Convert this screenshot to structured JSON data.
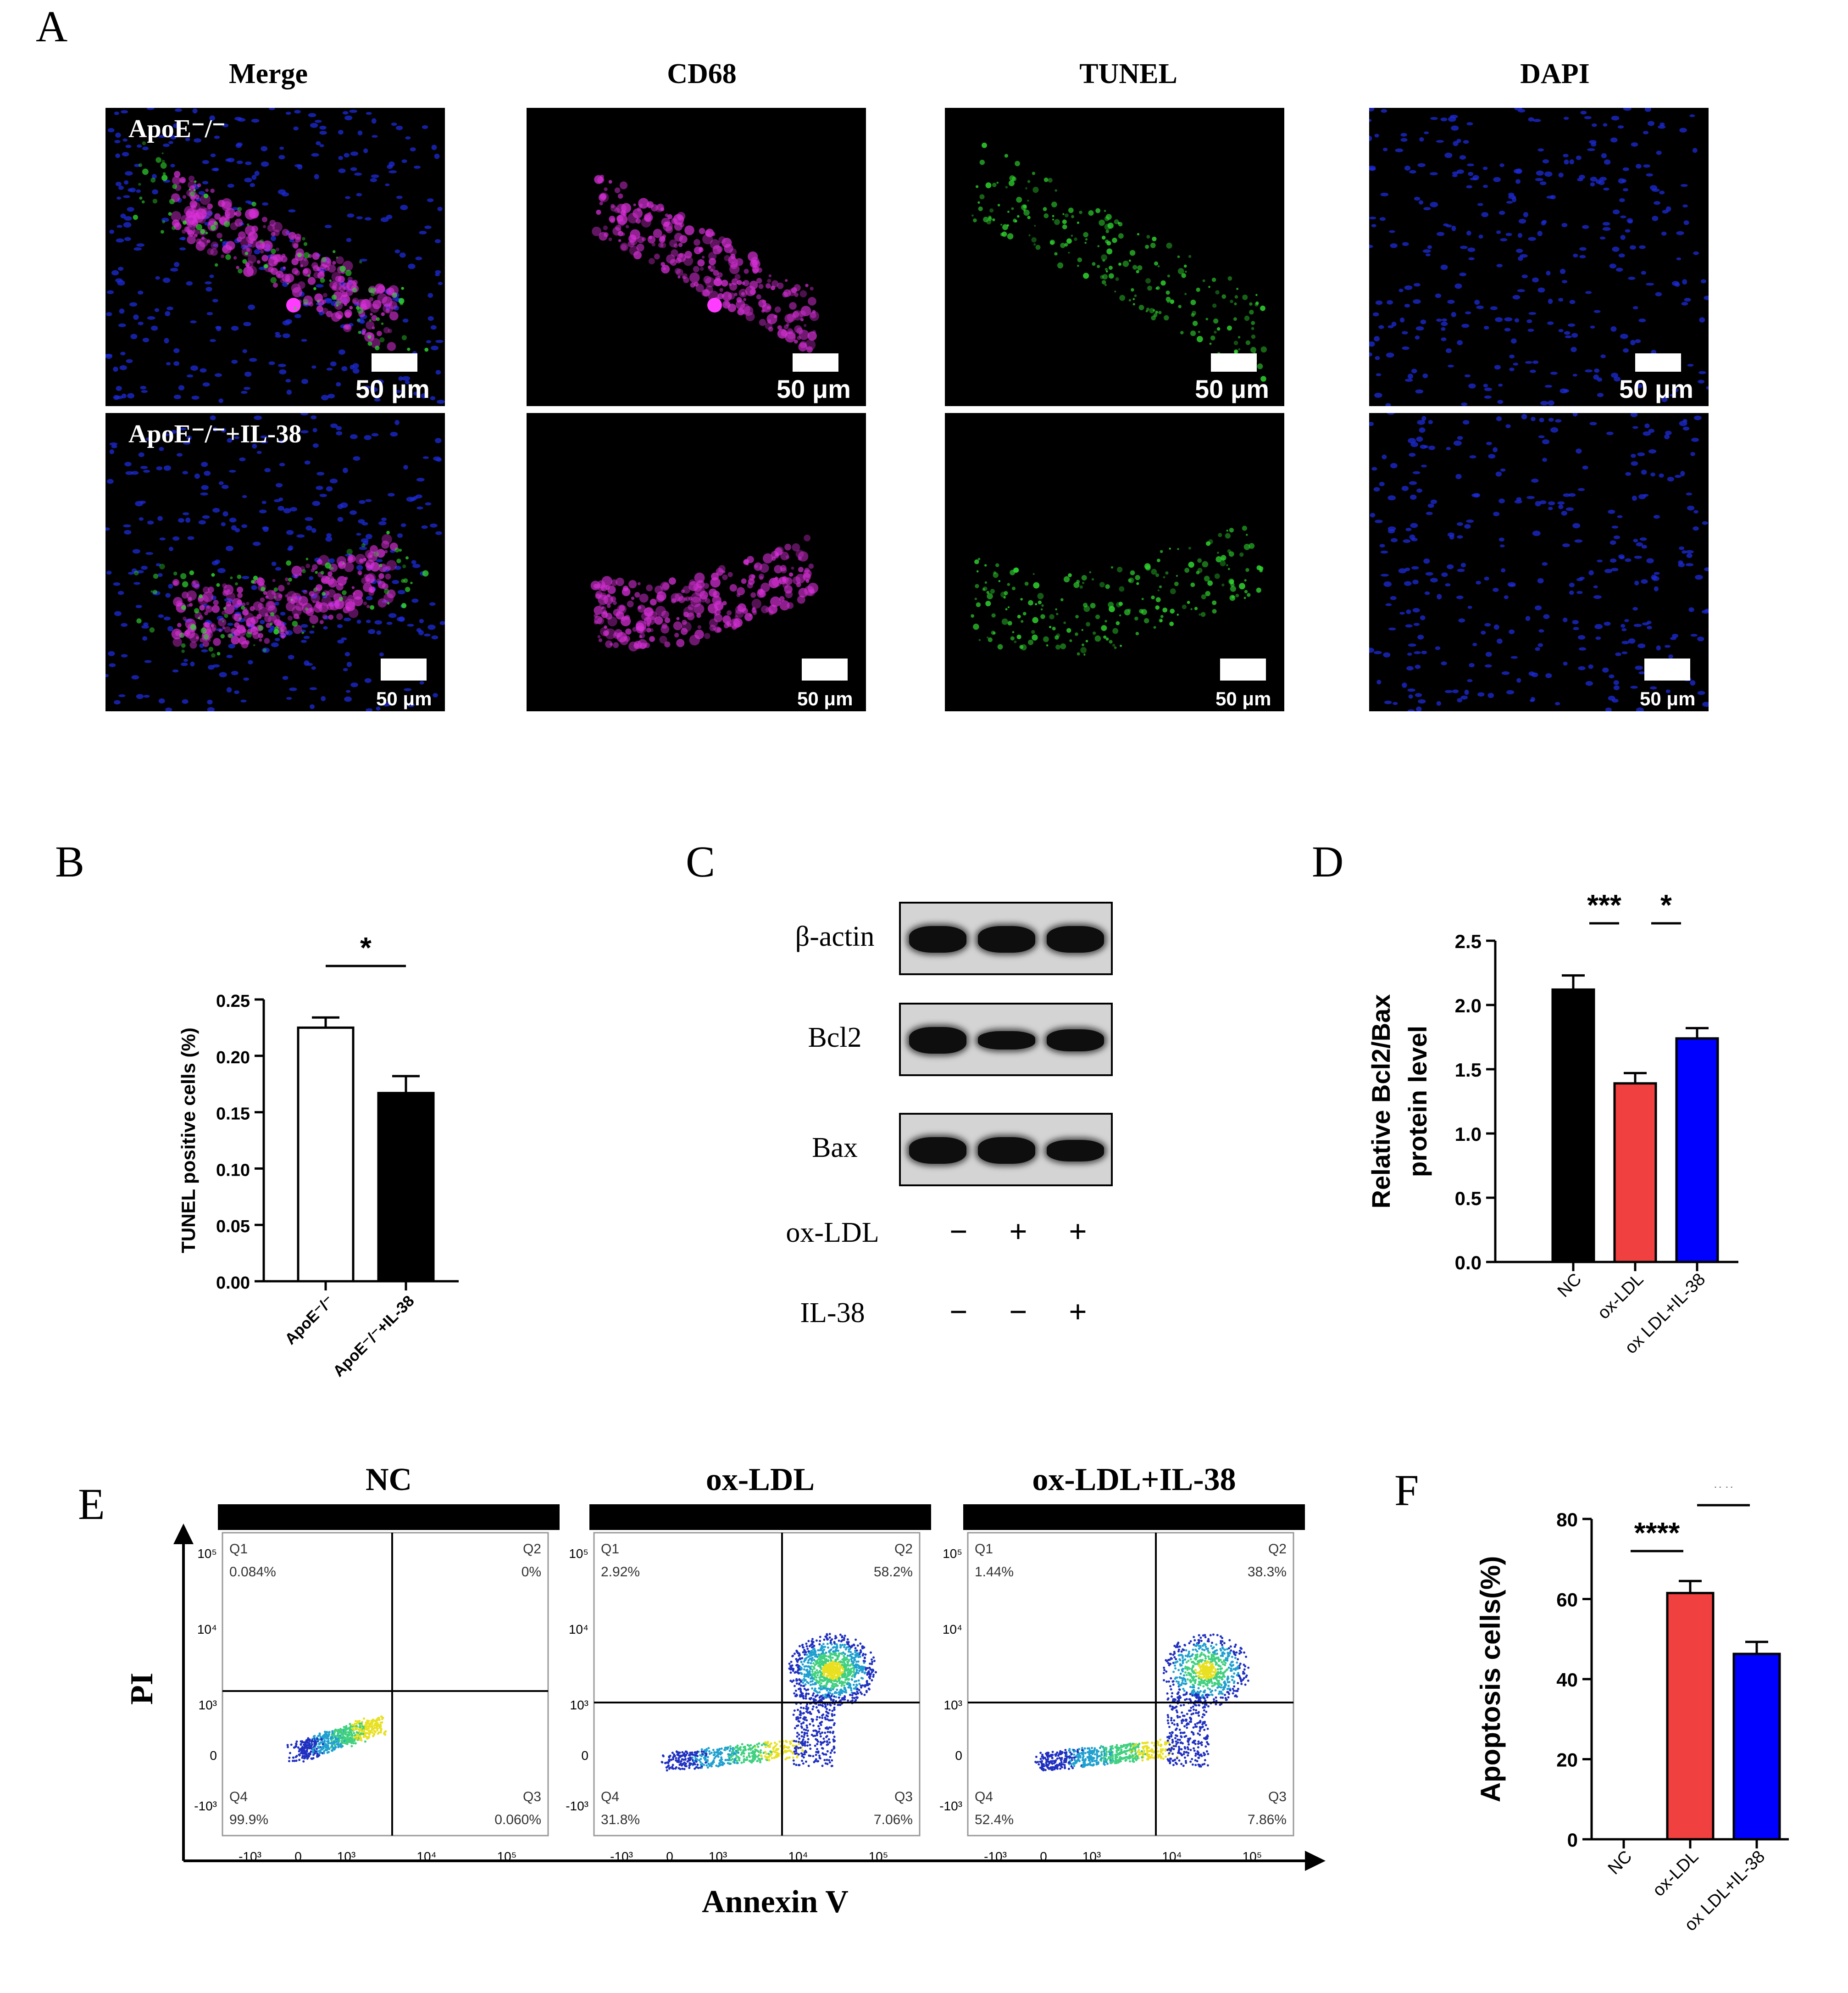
{
  "panels": {
    "a": "A",
    "b": "B",
    "c": "C",
    "d": "D",
    "e": "E",
    "f": "F"
  },
  "panel_a": {
    "columns": [
      "Merge",
      "CD68",
      "TUNEL",
      "DAPI"
    ],
    "rows": [
      "ApoE⁻/⁻",
      "ApoE⁻/⁻+IL-38"
    ],
    "scale_label": "50 μm",
    "channel_colors": {
      "merge_nuclei": "#1e2bd8",
      "cd68": "#d830d8",
      "tunel": "#30d830",
      "dapi": "#1e2bd8"
    }
  },
  "panel_b": {
    "chart_data": {
      "type": "bar",
      "categories": [
        "ApoE⁻/⁻",
        "ApoE⁻/⁻+IL-38"
      ],
      "values": [
        0.225,
        0.167
      ],
      "errors": [
        0.009,
        0.015
      ],
      "colors": [
        "#ffffff",
        "#000000"
      ],
      "ylabel": "TUNEL positive cells (%)",
      "ylim": [
        0,
        0.25
      ],
      "yticks": [
        "0.00",
        "0.05",
        "0.10",
        "0.15",
        "0.20",
        "0.25"
      ],
      "significance": [
        {
          "from": 0,
          "to": 1,
          "label": "*"
        }
      ]
    }
  },
  "panel_c": {
    "bands": [
      "β-actin",
      "Bcl2",
      "Bax"
    ],
    "band_intensity": [
      [
        1.0,
        1.0,
        1.0
      ],
      [
        1.0,
        0.6,
        0.78
      ],
      [
        1.0,
        1.0,
        0.75
      ]
    ],
    "conditions": [
      {
        "label": "ox-LDL",
        "signs": [
          "−",
          "+",
          "+"
        ]
      },
      {
        "label": "IL-38",
        "signs": [
          "−",
          "−",
          "+"
        ]
      }
    ]
  },
  "panel_d": {
    "chart_data": {
      "type": "bar",
      "categories": [
        "NC",
        "ox-LDL",
        "ox LDL+IL-38"
      ],
      "values": [
        2.12,
        1.39,
        1.74
      ],
      "errors": [
        0.11,
        0.08,
        0.08
      ],
      "colors": [
        "#000000",
        "#f04040",
        "#0000ff"
      ],
      "ylabel": [
        "Relative Bcl2/Bax",
        "protein level"
      ],
      "ylim": [
        0,
        2.5
      ],
      "yticks": [
        "0.0",
        "0.5",
        "1.0",
        "1.5",
        "2.0",
        "2.5"
      ],
      "significance": [
        {
          "from": 0,
          "to": 1,
          "label": "***"
        },
        {
          "from": 1,
          "to": 2,
          "label": "*"
        }
      ]
    }
  },
  "panel_e": {
    "groups": [
      {
        "title": "NC",
        "q1": "0.084%",
        "q2": "0%",
        "q3": "0.060%",
        "q4": "99.9%"
      },
      {
        "title": "ox-LDL",
        "q1": "2.92%",
        "q2": "58.2%",
        "q3": "7.06%",
        "q4": "31.8%"
      },
      {
        "title": "ox-LDL+IL-38",
        "q1": "1.44%",
        "q2": "38.3%",
        "q3": "7.86%",
        "q4": "52.4%"
      }
    ],
    "quadrant_names": {
      "q1": "Q1",
      "q2": "Q2",
      "q3": "Q3",
      "q4": "Q4"
    },
    "x_axis_title": "Annexin V",
    "y_axis_title": "PI",
    "x_ticks": [
      "-10³",
      "0",
      "10³",
      "10⁴",
      "10⁵"
    ],
    "y_ticks": [
      "10⁵",
      "10⁴",
      "10³",
      "0",
      "-10³"
    ]
  },
  "panel_f": {
    "chart_data": {
      "type": "bar",
      "categories": [
        "NC",
        "ox-LDL",
        "ox LDL+IL-38"
      ],
      "values": [
        0,
        61.5,
        46.3
      ],
      "errors": [
        0,
        3,
        3
      ],
      "colors": [
        "#000000",
        "#f04040",
        "#0000ff"
      ],
      "ylabel": "Apoptosis cells(%)",
      "ylim": [
        0,
        80
      ],
      "yticks": [
        "0",
        "20",
        "40",
        "60",
        "80"
      ],
      "significance": [
        {
          "from": 0,
          "to": 1,
          "label": "****"
        },
        {
          "from": 1,
          "to": 2,
          "label": "**"
        }
      ]
    }
  }
}
